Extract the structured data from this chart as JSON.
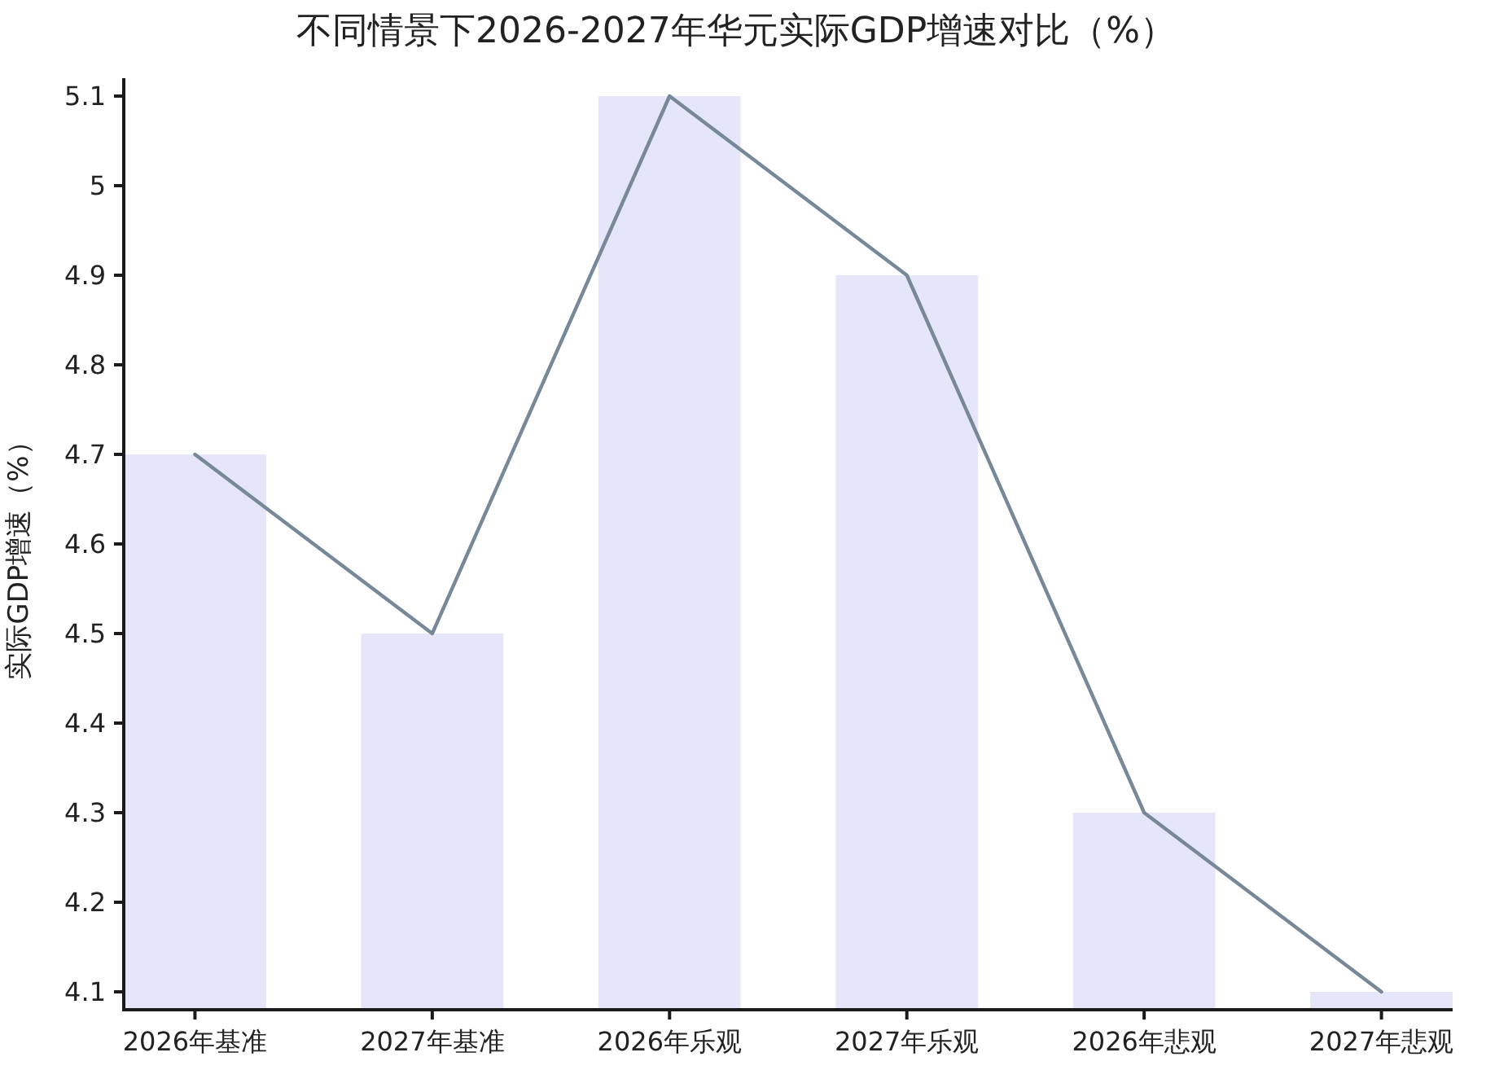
{
  "chart_data": {
    "type": "bar",
    "title": "不同情景下2026-2027年华元实际GDP增速对比（%）",
    "ylabel": "实际GDP增速（%）",
    "categories": [
      "2026年基准",
      "2027年基准",
      "2026年乐观",
      "2027年乐观",
      "2026年悲观",
      "2027年悲观"
    ],
    "series": [
      {
        "color": "#e6e6fa",
        "values": [
          4.7,
          4.5,
          5.1,
          4.9,
          4.3,
          4.1
        ]
      },
      {
        "type": "line",
        "color": "#778899",
        "values": [
          4.7,
          4.5,
          5.1,
          4.9,
          4.3,
          4.1
        ]
      }
    ],
    "ylim": [
      4.08,
      5.12
    ],
    "yticks": [
      4.1,
      4.2,
      4.3,
      4.4,
      4.5,
      4.6,
      4.7,
      4.8,
      4.9,
      5,
      5.1
    ]
  }
}
